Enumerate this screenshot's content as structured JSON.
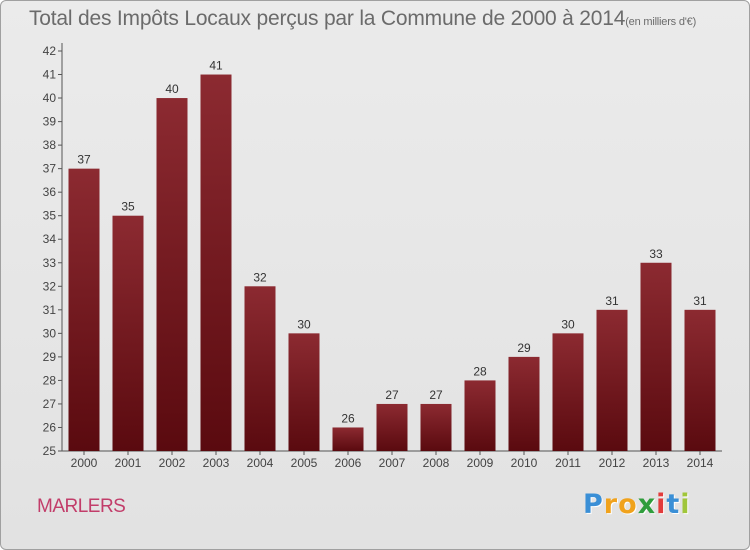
{
  "chart_data": {
    "type": "bar",
    "title": "Total des Impôts Locaux perçus par la Commune de 2000 à 2014",
    "title_unit": "(en milliers d'€)",
    "categories": [
      "2000",
      "2001",
      "2002",
      "2003",
      "2004",
      "2005",
      "2006",
      "2007",
      "2008",
      "2009",
      "2010",
      "2011",
      "2012",
      "2013",
      "2014"
    ],
    "values": [
      37,
      35,
      40,
      41,
      32,
      30,
      26,
      27,
      27,
      28,
      29,
      30,
      31,
      33,
      31
    ],
    "ylim": [
      25,
      42
    ],
    "yticks": [
      25,
      26,
      27,
      28,
      29,
      30,
      31,
      32,
      33,
      34,
      35,
      36,
      37,
      38,
      39,
      40,
      41,
      42
    ],
    "grid": false,
    "bar_color": "#7a1a20",
    "xlabel": "",
    "ylabel": ""
  },
  "commune": "MARLERS",
  "logo": {
    "letters": [
      "P",
      "r",
      "o",
      "x",
      "i",
      "t",
      "i"
    ],
    "colors": [
      "#3a8fd6",
      "#f0a21c",
      "#f0a21c",
      "#2f9d3c",
      "#e23b3b",
      "#3a8fd6",
      "#a0c63a"
    ]
  }
}
